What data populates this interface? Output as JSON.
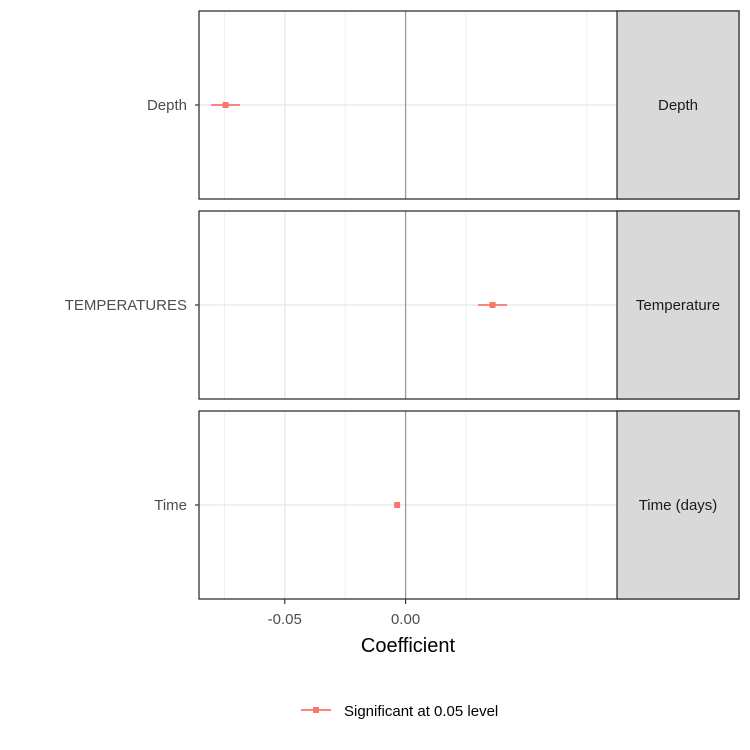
{
  "chart_data": {
    "type": "coefficient-plot",
    "facet_layout": "vertical",
    "xlabel": "Coefficient",
    "x_ticks": [
      -0.05,
      0.0
    ],
    "x_tick_labels": [
      "-0.05",
      "0.00"
    ],
    "xlim": [
      -0.0855,
      0.0875
    ],
    "grid": true,
    "zero_line": 0,
    "legend_position": "bottom",
    "legend": [
      {
        "label": "Significant at 0.05 level",
        "color": "#F8766D"
      }
    ],
    "colors": {
      "significant": "#F8766D",
      "zero_line": "#999999",
      "grid": "#ebebeb",
      "strip_bg": "#d9d9d9",
      "border": "#333333"
    },
    "panels": [
      {
        "strip": "Depth",
        "term": "Depth",
        "estimate": -0.0745,
        "conf_low": -0.0805,
        "conf_high": -0.0685,
        "significant": true
      },
      {
        "strip": "Temperature",
        "term": "TEMPERATURES",
        "estimate": 0.036,
        "conf_low": 0.03,
        "conf_high": 0.042,
        "significant": true
      },
      {
        "strip": "Time (days)",
        "term": "Time",
        "estimate": -0.0035,
        "conf_low": -0.0045,
        "conf_high": -0.0025,
        "significant": true
      }
    ]
  }
}
